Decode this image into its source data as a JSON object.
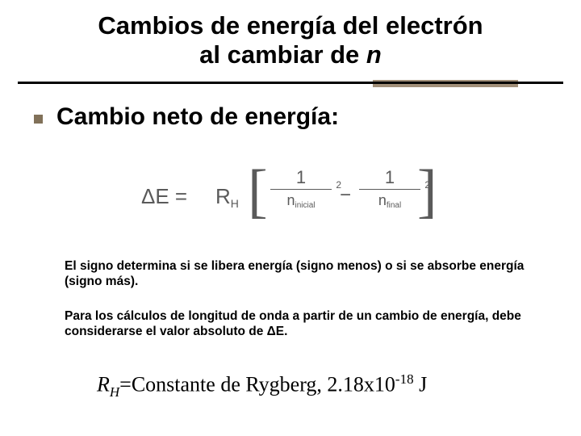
{
  "colors": {
    "accent": "#a18f79",
    "bullet": "#817159",
    "eq_color": "#5a5a5a",
    "bg": "#ffffff",
    "text": "#000000"
  },
  "title": {
    "line1": "Cambios de energía del electrón",
    "line2_prefix": "al cambiar de ",
    "line2_n": "n"
  },
  "subtitle": "Cambio neto de energía:",
  "equation": {
    "lhs": "ΔE =",
    "R_label": "R",
    "R_sub": "H",
    "frac1_num": "1",
    "frac1_den_n": "n",
    "frac1_den_sub": "inicial",
    "frac1_exp": "2",
    "minus": "−",
    "frac2_num": "1",
    "frac2_den_n": "n",
    "frac2_den_sub": "final",
    "frac2_exp": "2"
  },
  "para1": "El signo determina si se libera energía (signo menos) o si se absorbe energía (signo más).",
  "para2": "Para los cálculos de longitud de onda a partir de un cambio de energía, debe considerarse el valor absoluto de ΔE.",
  "constant": {
    "R": "R",
    "Rsub": "H",
    "eq": "=Constante de Rygberg, 2.18x10",
    "exp": "-18",
    "unit": " J"
  }
}
